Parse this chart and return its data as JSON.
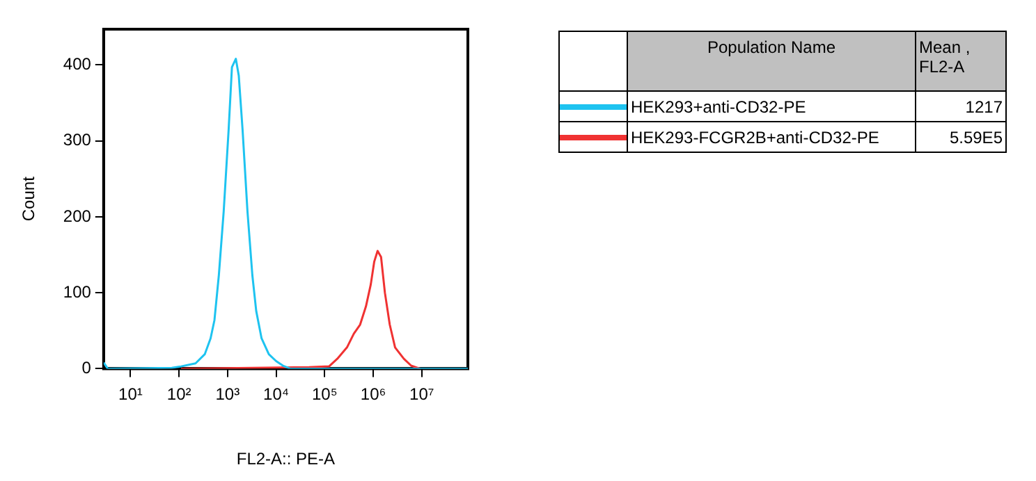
{
  "chart_data": {
    "type": "line",
    "xlabel": "FL2-A:: PE-A",
    "ylabel": "Count",
    "log": "x",
    "legend": "top right",
    "legend_title": "Population Name",
    "marker": "none",
    "line_style": "solid",
    "grid": false,
    "xlim": [
      2.8,
      89000000
    ],
    "xticks": [
      {
        "value": 10,
        "label": "10¹"
      },
      {
        "value": 100,
        "label": "10²"
      },
      {
        "value": 1000,
        "label": "10³"
      },
      {
        "value": 10000,
        "label": "10⁴"
      },
      {
        "value": 100000,
        "label": "10⁵"
      },
      {
        "value": 1000000,
        "label": "10⁶"
      },
      {
        "value": 10000000,
        "label": "10⁷"
      }
    ],
    "ylim": [
      0,
      447
    ],
    "yticks": [
      0,
      100,
      200,
      300,
      400
    ],
    "annotations": [
      "Mean , FL2-A",
      "1217",
      "5.59E5"
    ],
    "series": [
      {
        "name": "HEK293+anti-CD32-PE",
        "color": "#1ec3f0",
        "x": [
          2.8,
          3.4,
          71,
          110,
          219,
          339,
          447,
          537,
          661,
          832,
          1050,
          1230,
          1480,
          1700,
          2040,
          2570,
          3240,
          3890,
          5010,
          7080,
          10000,
          13800,
          19500,
          89000000
        ],
        "values": [
          8,
          0,
          1,
          3,
          7,
          19,
          40,
          64,
          123,
          207,
          314,
          397,
          408,
          386,
          314,
          207,
          123,
          76,
          40,
          19,
          10,
          4,
          0,
          0
        ]
      },
      {
        "name": "HEK293-FCGR2B+anti-CD32-PE",
        "color": "#f03232",
        "x": [
          110,
          47900,
          123000,
          182000,
          288000,
          398000,
          537000,
          708000,
          891000,
          1050000,
          1230000,
          1450000,
          1740000,
          2190000,
          2820000,
          4270000,
          6030000,
          8320000,
          9330000
        ],
        "values": [
          0,
          2,
          3,
          13,
          28,
          46,
          58,
          82,
          111,
          141,
          155,
          147,
          100,
          58,
          28,
          13,
          4,
          1,
          0
        ]
      }
    ]
  }
}
